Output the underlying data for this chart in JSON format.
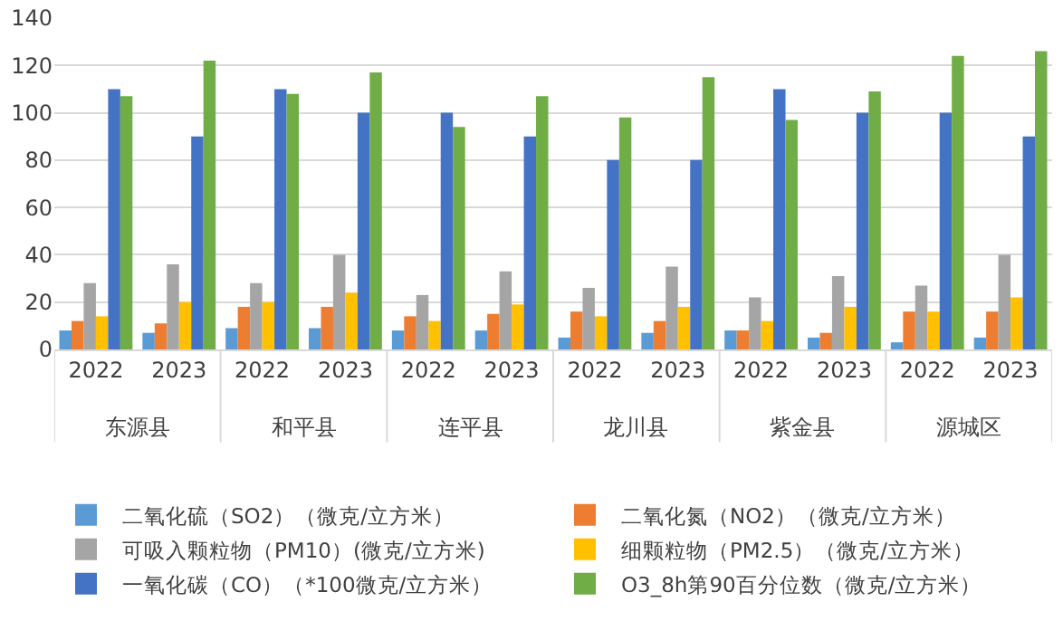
{
  "chart_data": {
    "type": "bar",
    "categories": [
      "2022",
      "2023",
      "2022",
      "2023",
      "2022",
      "2023",
      "2022",
      "2023",
      "2022",
      "2023",
      "2022",
      "2023"
    ],
    "annotations": [
      "东源县",
      "和平县",
      "连平县",
      "龙川县",
      "紫金县",
      "源城区"
    ],
    "series": [
      {
        "name": "二氧化硫（SO2）（微克/立方米）",
        "color": "#5b9bd5",
        "values": [
          8,
          7,
          9,
          9,
          8,
          8,
          5,
          7,
          8,
          5,
          3,
          5
        ]
      },
      {
        "name": "二氧化氮（NO2）（微克/立方米）",
        "color": "#ed7d31",
        "values": [
          12,
          11,
          18,
          18,
          14,
          15,
          16,
          12,
          8,
          7,
          16,
          16
        ]
      },
      {
        "name": "可吸入颗粒物（PM10）(微克/立方米)",
        "color": "#a5a5a5",
        "values": [
          28,
          36,
          28,
          40,
          23,
          33,
          26,
          35,
          22,
          31,
          27,
          40
        ]
      },
      {
        "name": "细颗粒物（PM2.5）（微克/立方米）",
        "color": "#ffc000",
        "values": [
          14,
          20,
          20,
          24,
          12,
          19,
          14,
          18,
          12,
          18,
          16,
          22
        ]
      },
      {
        "name": "一氧化碳（CO）（*100微克/立方米）",
        "color": "#4472c4",
        "values": [
          110,
          90,
          110,
          100,
          100,
          90,
          80,
          80,
          110,
          100,
          100,
          90
        ]
      },
      {
        "name": "O3_8h第90百分位数（微克/立方米）",
        "color": "#70ad47",
        "values": [
          107,
          122,
          108,
          117,
          94,
          107,
          98,
          115,
          97,
          109,
          124,
          126
        ]
      }
    ],
    "ylim": [
      0,
      140
    ],
    "yticks": [
      0,
      20,
      40,
      60,
      80,
      100,
      120,
      140
    ],
    "grid": "y",
    "legend": "bottom"
  }
}
